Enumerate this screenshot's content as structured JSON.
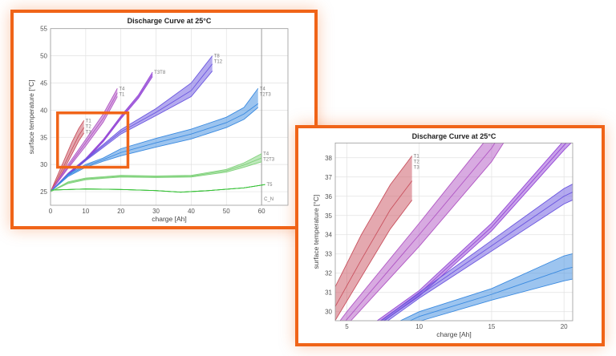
{
  "colors": {
    "highlight": "#f06418"
  },
  "chart_data": [
    {
      "type": "area",
      "title": "Discharge Curve at  25°C",
      "xlabel": "charge [Ah]",
      "ylabel": "surface temperature [°C]",
      "xlim": [
        0,
        67.5
      ],
      "ylim": [
        22.5,
        55
      ],
      "xticks": [
        0,
        10,
        20,
        30,
        40,
        50,
        60
      ],
      "yticks": [
        25,
        30,
        35,
        40,
        45,
        50,
        55
      ],
      "grid": true,
      "vertical_marker": {
        "x": 60,
        "label": "C_N"
      },
      "zoom_region": {
        "x": [
          2,
          22
        ],
        "y": [
          29.5,
          39.5
        ]
      },
      "series_ref": "series"
    },
    {
      "type": "area",
      "title": "Discharge Curve at  25°C",
      "xlabel": "charge [Ah]",
      "ylabel": "surface temperature [°C]",
      "xlim": [
        4.2,
        20.6
      ],
      "ylim": [
        29.53,
        38.77
      ],
      "xticks": [
        5,
        10,
        15,
        20
      ],
      "yticks": [
        30,
        31,
        32,
        33,
        34,
        35,
        36,
        37,
        38
      ],
      "grid": true,
      "series_ref": "series"
    }
  ],
  "series": [
    {
      "color": "#c9525f",
      "labels": [
        "T1",
        "T2",
        "T3"
      ],
      "x": [
        0,
        2,
        4,
        6,
        8,
        9.5
      ],
      "lower": [
        25,
        27,
        29.3,
        31.8,
        34.3,
        35.8
      ],
      "mid": [
        25,
        27.4,
        30,
        32.7,
        35.3,
        36.8
      ],
      "upper": [
        25,
        28,
        31,
        34,
        36.6,
        38.1
      ]
    },
    {
      "color": "#b156c4",
      "labels": [
        "T4",
        "T1"
      ],
      "x": [
        0,
        5,
        10,
        15,
        19
      ],
      "lower": [
        25,
        29.3,
        33.4,
        37.8,
        42.5
      ],
      "mid": [
        25,
        29.6,
        34,
        38.5,
        43.2
      ],
      "upper": [
        25,
        30.0,
        34.6,
        39.3,
        44
      ]
    },
    {
      "color": "#9446d6",
      "labels": [
        "T3T8"
      ],
      "x": [
        0,
        5,
        10,
        15,
        20,
        25,
        29
      ],
      "lower": [
        25,
        28.2,
        30.8,
        34.2,
        38.4,
        42.2,
        46.2
      ],
      "mid": [
        25,
        28.3,
        30.95,
        34.4,
        38.65,
        42.5,
        46.6
      ],
      "upper": [
        25,
        28.4,
        31.1,
        34.6,
        38.9,
        42.8,
        47
      ]
    },
    {
      "color": "#6a55e0",
      "labels": [
        "T8",
        "T12"
      ],
      "x": [
        0,
        5,
        10,
        20,
        30,
        40,
        46
      ],
      "lower": [
        25,
        28,
        30.7,
        35.6,
        39,
        42.5,
        47.2
      ],
      "mid": [
        25,
        28.1,
        30.85,
        36,
        39.6,
        43.6,
        48.5
      ],
      "upper": [
        25,
        28.2,
        31,
        36.4,
        40.3,
        45,
        50
      ]
    },
    {
      "color": "#3a8ae0",
      "labels": [
        "T4",
        "T2T3"
      ],
      "x": [
        0,
        5,
        10,
        15,
        20,
        30,
        40,
        50,
        55,
        59
      ],
      "lower": [
        25,
        27.8,
        29.5,
        30.6,
        31.6,
        33.2,
        34.7,
        36.8,
        38.3,
        40.5
      ],
      "mid": [
        25,
        28,
        29.75,
        30.9,
        32.2,
        34,
        35.6,
        37.7,
        39.3,
        41.2
      ],
      "upper": [
        25,
        28.2,
        30,
        31.2,
        32.9,
        34.8,
        36.5,
        38.7,
        40.5,
        44
      ]
    },
    {
      "color": "#7fd27a",
      "labels": [
        "T4",
        "T2T3"
      ],
      "x": [
        0,
        5,
        10,
        20,
        30,
        40,
        50,
        55,
        60
      ],
      "lower": [
        25,
        26.5,
        27.2,
        27.7,
        27.6,
        27.7,
        28.6,
        29.5,
        30.5
      ],
      "mid": [
        25,
        26.65,
        27.35,
        27.85,
        27.75,
        27.85,
        28.85,
        29.9,
        31.2
      ],
      "upper": [
        25,
        26.8,
        27.5,
        28,
        27.9,
        28,
        29.1,
        30.3,
        32
      ]
    },
    {
      "color": "#34c034",
      "labels": [
        "T5"
      ],
      "x": [
        0,
        10,
        20,
        30,
        37,
        45,
        55,
        61
      ],
      "lower": [
        25.3,
        25.5,
        25.4,
        25.2,
        24.9,
        25.2,
        25.7,
        26.3
      ],
      "mid": [
        25.3,
        25.5,
        25.4,
        25.2,
        24.9,
        25.2,
        25.7,
        26.3
      ],
      "upper": [
        25.3,
        25.5,
        25.4,
        25.2,
        24.9,
        25.2,
        25.7,
        26.3
      ]
    }
  ]
}
